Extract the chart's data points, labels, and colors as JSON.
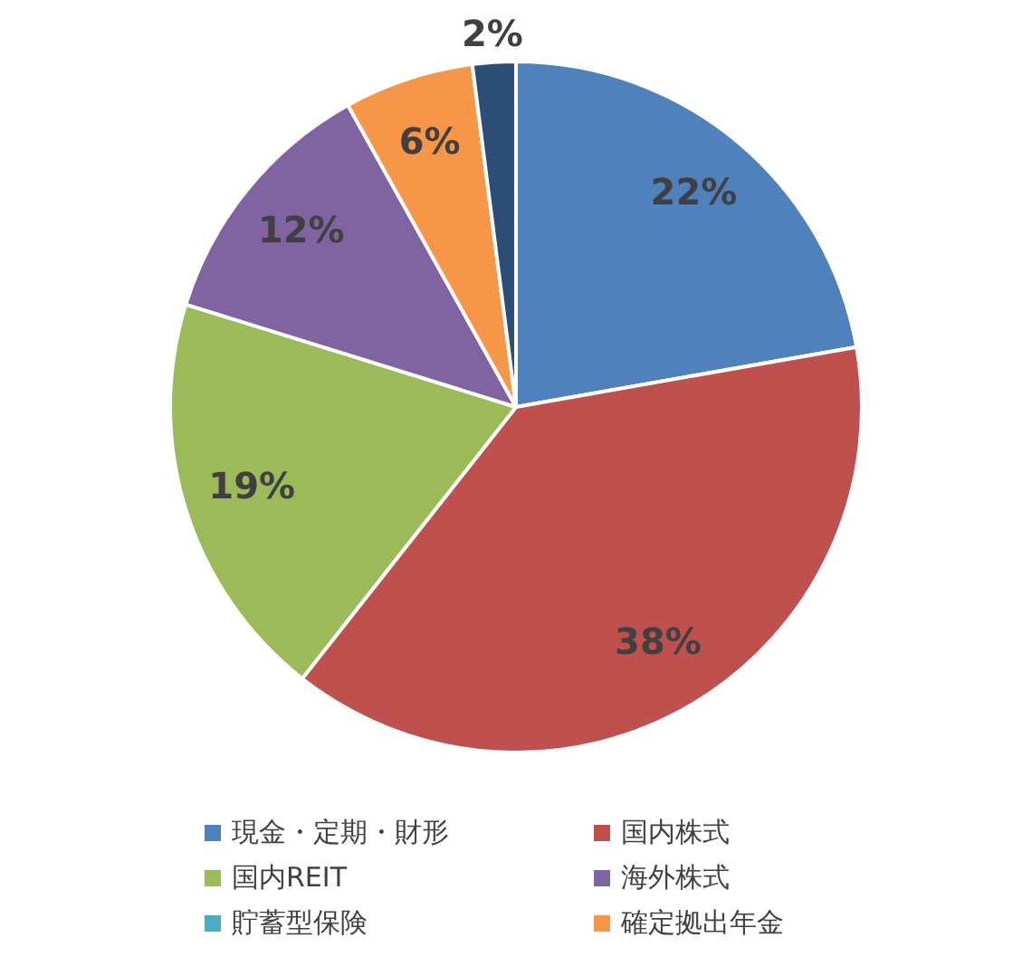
{
  "chart_data": {
    "type": "pie",
    "categories": [
      "現金・定期・財形",
      "国内株式",
      "国内REIT",
      "海外株式",
      "貯蓄型保険",
      "確定拠出年金",
      null
    ],
    "values": [
      22,
      38,
      19,
      12,
      0,
      6,
      2
    ],
    "colors": [
      "#4f81bd",
      "#c0504d",
      "#9bbb59",
      "#8064a2",
      "#4bacc6",
      "#f79646",
      "#2c4d75"
    ],
    "value_labels": [
      "22%",
      "38%",
      "19%",
      "12%",
      null,
      "6%",
      "2%"
    ],
    "legend": "bottom"
  }
}
